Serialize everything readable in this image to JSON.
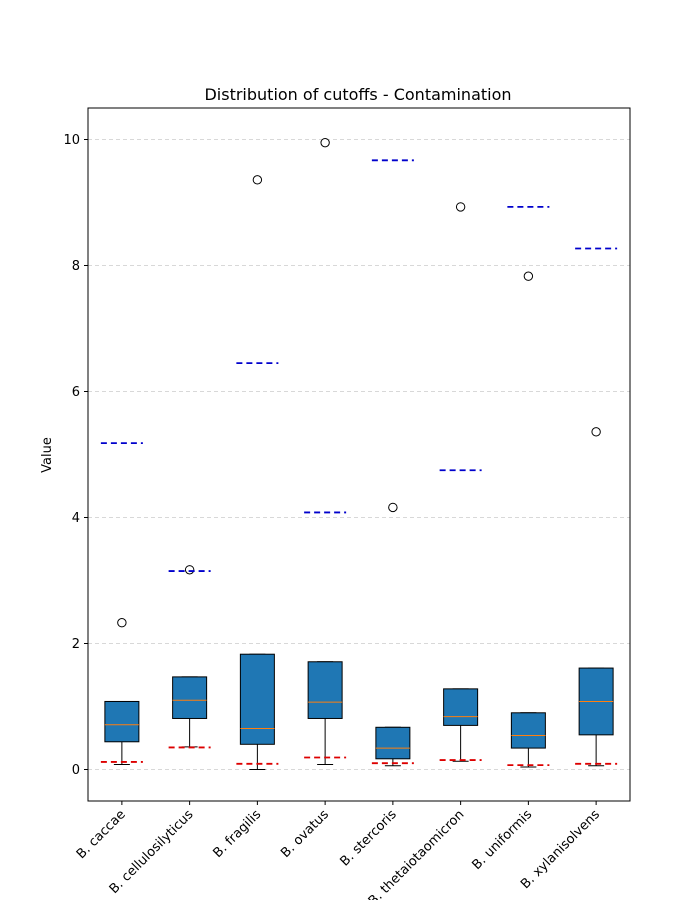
{
  "chart_data": {
    "type": "boxplot",
    "title": "Distribution of cutoffs - Contamination",
    "xlabel": "",
    "ylabel": "Value",
    "ylim": [
      -0.5,
      10.5
    ],
    "yticks": [
      0,
      2,
      4,
      6,
      8,
      10
    ],
    "ytick_labels": [
      "0",
      "2",
      "4",
      "6",
      "8",
      "10"
    ],
    "grid": "y-dashed",
    "categories": [
      "B. caccae",
      "B. cellulosilyticus",
      "B. fragilis",
      "B. ovatus",
      "B. stercoris",
      "B. thetaiotaomicron",
      "B. uniformis",
      "B. xylanisolvens"
    ],
    "boxes": [
      {
        "whisker_low": 0.08,
        "q1": 0.44,
        "median": 0.71,
        "q3": 1.08,
        "whisker_high": 1.08,
        "outliers": [
          2.33
        ]
      },
      {
        "whisker_low": 0.36,
        "q1": 0.81,
        "median": 1.1,
        "q3": 1.47,
        "whisker_high": 1.47,
        "outliers": [
          3.17
        ]
      },
      {
        "whisker_low": 0.0,
        "q1": 0.4,
        "median": 0.65,
        "q3": 1.83,
        "whisker_high": 1.83,
        "outliers": [
          9.36
        ]
      },
      {
        "whisker_low": 0.08,
        "q1": 0.81,
        "median": 1.07,
        "q3": 1.71,
        "whisker_high": 1.71,
        "outliers": [
          9.95
        ]
      },
      {
        "whisker_low": 0.06,
        "q1": 0.17,
        "median": 0.34,
        "q3": 0.67,
        "whisker_high": 0.67,
        "outliers": [
          4.16
        ]
      },
      {
        "whisker_low": 0.13,
        "q1": 0.7,
        "median": 0.84,
        "q3": 1.28,
        "whisker_high": 1.28,
        "outliers": [
          8.93
        ]
      },
      {
        "whisker_low": 0.04,
        "q1": 0.34,
        "median": 0.54,
        "q3": 0.9,
        "whisker_high": 0.9,
        "outliers": [
          7.83
        ]
      },
      {
        "whisker_low": 0.06,
        "q1": 0.55,
        "median": 1.08,
        "q3": 1.61,
        "whisker_high": 1.61,
        "outliers": [
          5.36
        ]
      }
    ],
    "blue_cutoffs": [
      5.18,
      3.15,
      6.45,
      4.08,
      9.67,
      4.75,
      8.93,
      8.27
    ],
    "red_cutoffs": [
      0.12,
      0.35,
      0.09,
      0.19,
      0.1,
      0.15,
      0.07,
      0.09
    ],
    "colors": {
      "box_fill": "#1f77b4",
      "median": "#ff7f0e",
      "blue_line": "#0000cc",
      "red_line": "#dd0000",
      "grid": "#cccccc",
      "frame": "#000000"
    }
  }
}
